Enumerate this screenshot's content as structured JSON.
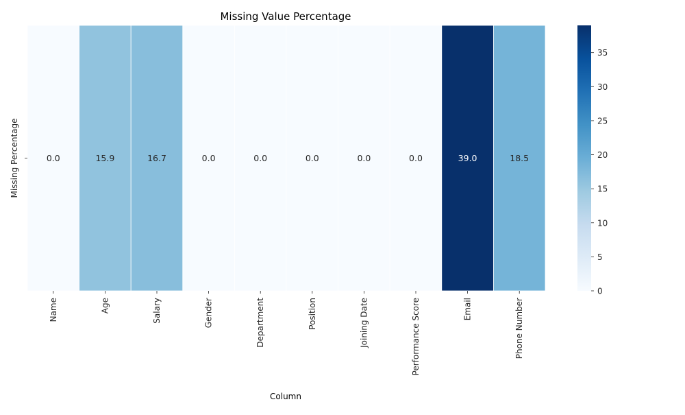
{
  "chart_data": {
    "type": "heatmap",
    "title": "Missing Value Percentage",
    "xlabel": "Column",
    "ylabel": "",
    "row_labels": [
      "Missing Percentage"
    ],
    "categories": [
      "Name",
      "Age",
      "Salary",
      "Gender",
      "Department",
      "Position",
      "Joining Date",
      "Performance Score",
      "Email",
      "Phone Number"
    ],
    "values": [
      0.0,
      15.9,
      16.7,
      0.0,
      0.0,
      0.0,
      0.0,
      0.0,
      39.0,
      18.5
    ],
    "annotations": [
      "0.0",
      "15.9",
      "16.7",
      "0.0",
      "0.0",
      "0.0",
      "0.0",
      "0.0",
      "39.0",
      "18.5"
    ],
    "colormap": "Blues",
    "colorbar": {
      "range": [
        0,
        39.0
      ],
      "ticks": [
        0,
        5,
        10,
        15,
        20,
        25,
        30,
        35
      ],
      "tick_labels": [
        "0",
        "5",
        "10",
        "15",
        "20",
        "25",
        "30",
        "35"
      ]
    },
    "grid": false,
    "legend": "colorbar-right"
  }
}
